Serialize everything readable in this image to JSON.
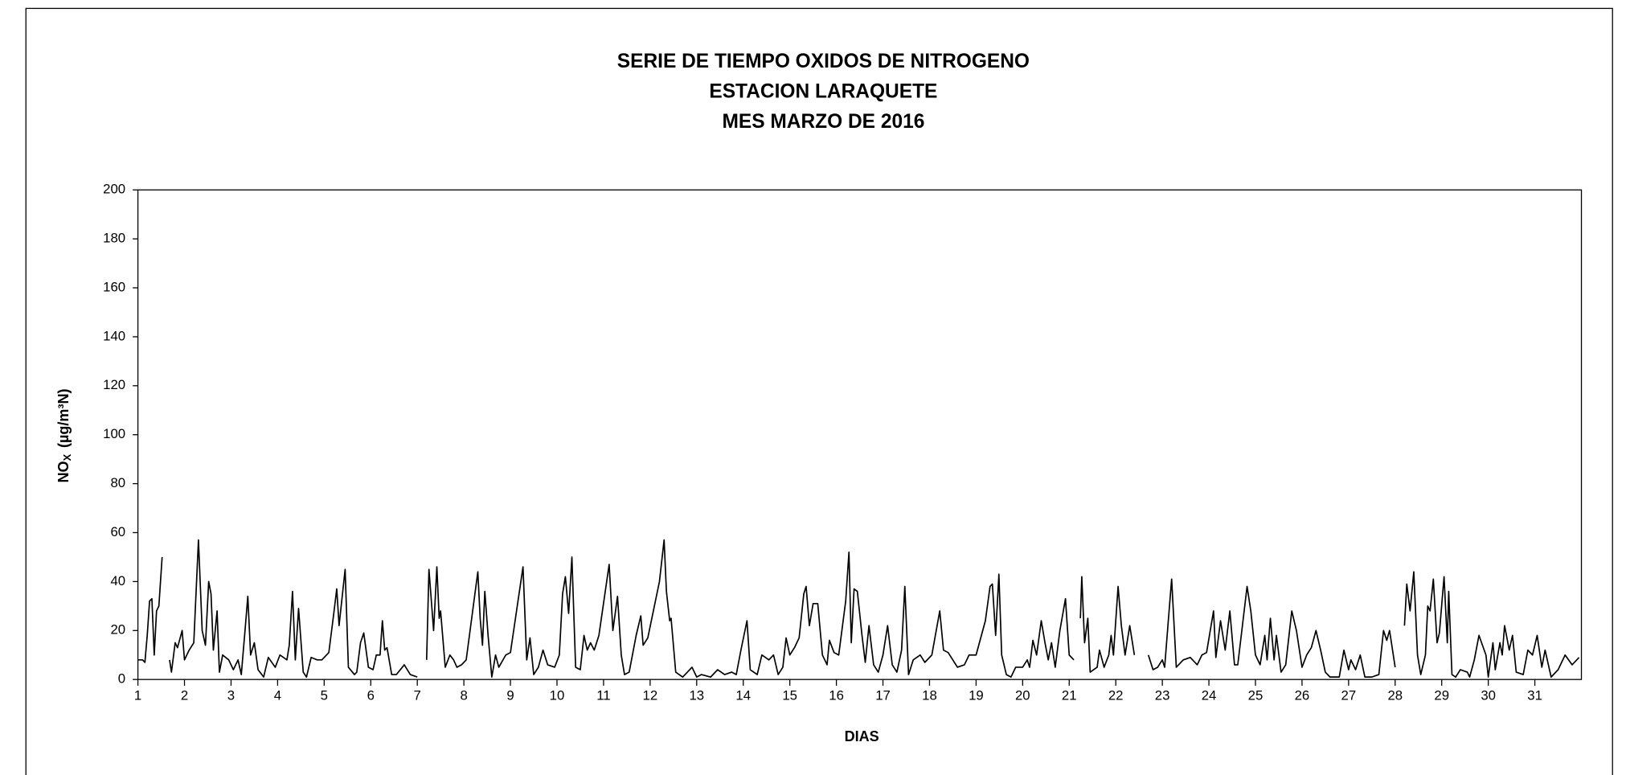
{
  "chart_data": {
    "type": "line",
    "title": [
      "SERIE DE TIEMPO OXIDOS DE NITROGENO",
      "ESTACION LARAQUETE",
      "MES MARZO  DE 2016"
    ],
    "xlabel": "DIAS",
    "ylabel": {
      "text": "NO",
      "subscript": "X",
      "unit": "(µg/m³N)"
    },
    "color": "#000000",
    "xlim": [
      1,
      32
    ],
    "xticks": [
      1,
      2,
      3,
      4,
      5,
      6,
      7,
      8,
      9,
      10,
      11,
      12,
      13,
      14,
      15,
      16,
      17,
      18,
      19,
      20,
      21,
      22,
      23,
      24,
      25,
      26,
      27,
      28,
      29,
      30,
      31
    ],
    "ylim": [
      0,
      200
    ],
    "yticks": [
      0,
      20,
      40,
      60,
      80,
      100,
      120,
      140,
      160,
      180,
      200
    ],
    "x": [
      1.0,
      1.1,
      1.15,
      1.2,
      1.25,
      1.3,
      1.35,
      1.4,
      1.45,
      1.52,
      1.6,
      1.68,
      1.72,
      1.8,
      1.85,
      1.95,
      2.0,
      2.1,
      2.2,
      2.3,
      2.38,
      2.45,
      2.52,
      2.57,
      2.62,
      2.7,
      2.75,
      2.82,
      2.95,
      3.05,
      3.15,
      3.22,
      3.3,
      3.36,
      3.42,
      3.5,
      3.58,
      3.7,
      3.8,
      3.95,
      4.05,
      4.2,
      4.25,
      4.32,
      4.38,
      4.45,
      4.55,
      4.62,
      4.72,
      4.85,
      4.95,
      5.1,
      5.2,
      5.27,
      5.32,
      5.45,
      5.52,
      5.65,
      5.7,
      5.78,
      5.85,
      5.95,
      6.05,
      6.12,
      6.2,
      6.25,
      6.3,
      6.35,
      6.45,
      6.55,
      6.72,
      6.85,
      7.0,
      7.1,
      7.2,
      7.25,
      7.35,
      7.42,
      7.47,
      7.5,
      7.6,
      7.7,
      7.78,
      7.85,
      7.95,
      8.05,
      8.3,
      8.35,
      8.4,
      8.45,
      8.52,
      8.6,
      8.68,
      8.75,
      8.9,
      9.0,
      9.27,
      9.35,
      9.42,
      9.5,
      9.6,
      9.7,
      9.8,
      9.95,
      10.05,
      10.12,
      10.18,
      10.25,
      10.32,
      10.4,
      10.5,
      10.58,
      10.65,
      10.72,
      10.8,
      10.9,
      11.12,
      11.2,
      11.3,
      11.38,
      11.45,
      11.55,
      11.7,
      11.8,
      11.85,
      11.95,
      12.2,
      12.3,
      12.35,
      12.42,
      12.45,
      12.55,
      12.7,
      12.8,
      12.9,
      13.0,
      13.1,
      13.3,
      13.45,
      13.6,
      13.75,
      13.85,
      13.95,
      14.08,
      14.15,
      14.3,
      14.4,
      14.55,
      14.65,
      14.75,
      14.85,
      14.92,
      15.0,
      15.1,
      15.2,
      15.3,
      15.35,
      15.42,
      15.5,
      15.6,
      15.7,
      15.8,
      15.85,
      15.95,
      16.05,
      16.2,
      16.27,
      16.32,
      16.38,
      16.45,
      16.55,
      16.62,
      16.7,
      16.8,
      16.9,
      17.0,
      17.1,
      17.2,
      17.3,
      17.4,
      17.47,
      17.55,
      17.65,
      17.8,
      17.9,
      18.05,
      18.22,
      18.3,
      18.4,
      18.5,
      18.6,
      18.75,
      18.85,
      19.0,
      19.2,
      19.3,
      19.35,
      19.42,
      19.49,
      19.55,
      19.65,
      19.75,
      19.85,
      20.0,
      20.1,
      20.15,
      20.22,
      20.3,
      20.4,
      20.48,
      20.55,
      20.62,
      20.7,
      20.8,
      20.92,
      21.0,
      21.1,
      21.18,
      21.24,
      21.27,
      21.33,
      21.4,
      21.45,
      21.6,
      21.65,
      21.75,
      21.85,
      21.9,
      21.95,
      22.05,
      22.12,
      22.2,
      22.3,
      22.4,
      22.55,
      22.7,
      22.8,
      22.9,
      23.0,
      23.05,
      23.12,
      23.2,
      23.3,
      23.45,
      23.6,
      23.75,
      23.85,
      23.95,
      24.1,
      24.15,
      24.25,
      24.35,
      24.45,
      24.55,
      24.62,
      24.72,
      24.82,
      24.9,
      25.0,
      25.1,
      25.2,
      25.25,
      25.32,
      25.4,
      25.45,
      25.55,
      25.65,
      25.78,
      25.88,
      26.0,
      26.1,
      26.2,
      26.3,
      26.4,
      26.5,
      26.6,
      26.8,
      26.9,
      27.0,
      27.05,
      27.15,
      27.25,
      27.35,
      27.5,
      27.65,
      27.75,
      27.82,
      27.88,
      28.0,
      28.1,
      28.2,
      28.25,
      28.32,
      28.4,
      28.48,
      28.55,
      28.65,
      28.7,
      28.75,
      28.82,
      28.9,
      28.95,
      29.05,
      29.12,
      29.15,
      29.22,
      29.3,
      29.4,
      29.55,
      29.6,
      29.7,
      29.8,
      29.95,
      30.0,
      30.1,
      30.15,
      30.25,
      30.3,
      30.35,
      30.45,
      30.52,
      30.6,
      30.75,
      30.85,
      30.95,
      31.05,
      31.15,
      31.22,
      31.35,
      31.5,
      31.65,
      31.8,
      31.95
    ],
    "values": [
      8,
      8,
      7,
      18,
      32,
      33,
      10,
      28,
      30,
      50,
      null,
      8,
      3,
      15,
      13,
      20,
      8,
      12,
      15,
      57,
      20,
      14,
      40,
      35,
      12,
      28,
      3,
      10,
      8,
      4,
      8,
      2,
      20,
      34,
      10,
      15,
      4,
      1,
      9,
      5,
      10,
      8,
      14,
      36,
      8,
      29,
      3,
      1,
      9,
      8,
      8,
      11,
      26,
      37,
      22,
      45,
      5,
      2,
      3,
      15,
      19,
      5,
      4,
      10,
      10,
      24,
      12,
      13,
      2,
      2,
      6,
      2,
      1,
      null,
      8,
      45,
      20,
      46,
      25,
      28,
      5,
      10,
      8,
      5,
      6,
      8,
      44,
      25,
      14,
      36,
      18,
      1,
      10,
      5,
      10,
      11,
      46,
      8,
      17,
      2,
      5,
      12,
      6,
      5,
      10,
      35,
      42,
      27,
      50,
      5,
      4,
      18,
      12,
      15,
      12,
      18,
      47,
      20,
      34,
      10,
      2,
      3,
      18,
      26,
      14,
      17,
      40,
      57,
      36,
      24,
      25,
      3,
      1,
      3,
      5,
      1,
      2,
      1,
      4,
      2,
      3,
      2,
      12,
      24,
      4,
      2,
      10,
      8,
      10,
      2,
      5,
      17,
      10,
      13,
      17,
      35,
      38,
      22,
      31,
      31,
      10,
      6,
      16,
      11,
      10,
      32,
      52,
      15,
      37,
      36,
      18,
      7,
      22,
      6,
      3,
      10,
      22,
      6,
      3,
      12,
      38,
      2,
      8,
      10,
      7,
      10,
      28,
      12,
      11,
      8,
      5,
      6,
      10,
      10,
      24,
      38,
      39,
      18,
      43,
      10,
      2,
      1,
      5,
      5,
      8,
      5,
      16,
      10,
      24,
      15,
      8,
      15,
      5,
      20,
      33,
      10,
      8,
      null,
      25,
      42,
      15,
      25,
      3,
      5,
      12,
      5,
      10,
      18,
      10,
      38,
      22,
      10,
      22,
      10,
      null,
      10,
      4,
      5,
      8,
      5,
      22,
      41,
      5,
      8,
      9,
      6,
      10,
      11,
      28,
      9,
      24,
      12,
      28,
      6,
      6,
      22,
      38,
      28,
      10,
      6,
      18,
      8,
      25,
      8,
      18,
      3,
      6,
      28,
      20,
      5,
      10,
      13,
      20,
      12,
      3,
      1,
      1,
      12,
      4,
      8,
      4,
      10,
      1,
      1,
      2,
      20,
      16,
      20,
      5,
      null,
      22,
      39,
      28,
      44,
      10,
      2,
      10,
      30,
      28,
      41,
      15,
      19,
      42,
      15,
      36,
      2,
      1,
      4,
      3,
      1,
      8,
      18,
      10,
      1,
      15,
      4,
      15,
      10,
      22,
      12,
      18,
      3,
      2,
      12,
      10,
      18,
      5,
      12,
      1,
      4,
      10,
      6,
      9
    ]
  }
}
